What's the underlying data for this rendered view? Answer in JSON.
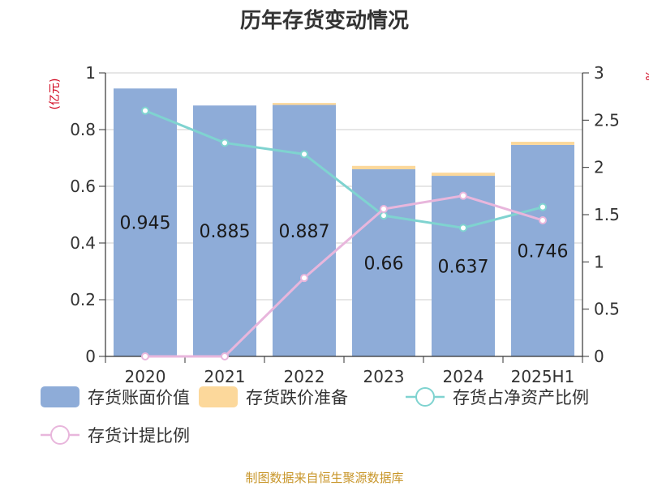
{
  "chart_data": {
    "type": "bar",
    "title": "历年存货变动情况",
    "left_unit": "(亿元)",
    "right_unit": "%",
    "categories": [
      "2020",
      "2021",
      "2022",
      "2023",
      "2024",
      "2025H1"
    ],
    "left_axis": {
      "min": 0,
      "max": 1,
      "ticks": [
        "0",
        "0.2",
        "0.4",
        "0.6",
        "0.8",
        "1"
      ]
    },
    "right_axis": {
      "min": 0,
      "max": 3,
      "ticks": [
        "0",
        "0.5",
        "1",
        "1.5",
        "2",
        "2.5",
        "3"
      ]
    },
    "stacked": true,
    "series": [
      {
        "name": "存货账面价值",
        "type": "bar",
        "axis": "left",
        "color": "#8eacd8",
        "values": [
          0.945,
          0.885,
          0.887,
          0.66,
          0.637,
          0.746
        ],
        "labels": [
          "0.945",
          "0.885",
          "0.887",
          "0.66",
          "0.637",
          "0.746"
        ]
      },
      {
        "name": "存货跌价准备",
        "type": "bar",
        "axis": "left",
        "color": "#fcd89b",
        "values": [
          0,
          0,
          0.007,
          0.012,
          0.011,
          0.011
        ]
      },
      {
        "name": "存货占净资产比例",
        "type": "line",
        "axis": "right",
        "color": "#7fd3d0",
        "values": [
          2.6,
          2.26,
          2.14,
          1.49,
          1.36,
          1.58
        ]
      },
      {
        "name": "存货计提比例",
        "type": "line",
        "axis": "right",
        "color": "#e8b6dc",
        "values": [
          0,
          0,
          0.83,
          1.56,
          1.7,
          1.44
        ]
      }
    ],
    "grid": true,
    "legend_position": "bottom"
  },
  "source_text": "制图数据来自恒生聚源数据库"
}
